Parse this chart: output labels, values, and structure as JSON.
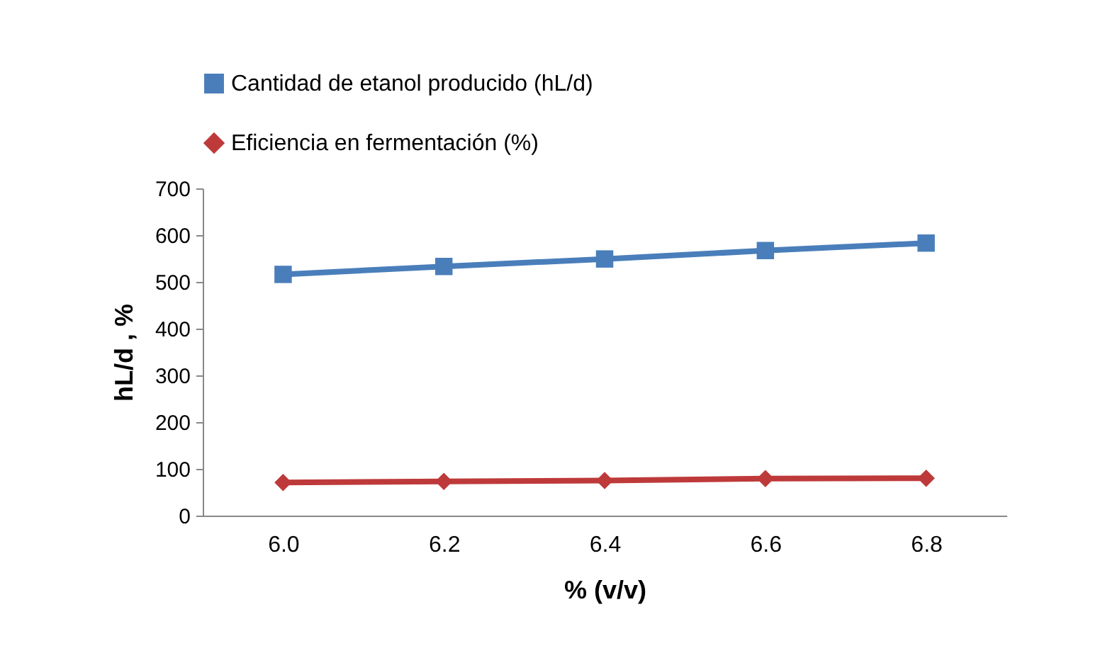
{
  "chart_data": {
    "type": "line",
    "xlabel": "% (v/v)",
    "ylabel": "hL/d , %",
    "categories": [
      "6.0",
      "6.2",
      "6.4",
      "6.6",
      "6.8"
    ],
    "series": [
      {
        "name": "Cantidad de etanol producido (hL/d)",
        "color": "#4a7ebb",
        "marker": "square",
        "values": [
          516,
          533,
          549,
          567,
          583
        ]
      },
      {
        "name": "Eficiencia en fermentación (%)",
        "color": "#be3a3a",
        "marker": "diamond",
        "values": [
          71,
          73,
          75,
          79,
          80
        ]
      }
    ],
    "ylim": [
      0,
      700
    ],
    "yticks": [
      0,
      100,
      200,
      300,
      400,
      500,
      600,
      700
    ],
    "grid": false,
    "legend": "top"
  }
}
